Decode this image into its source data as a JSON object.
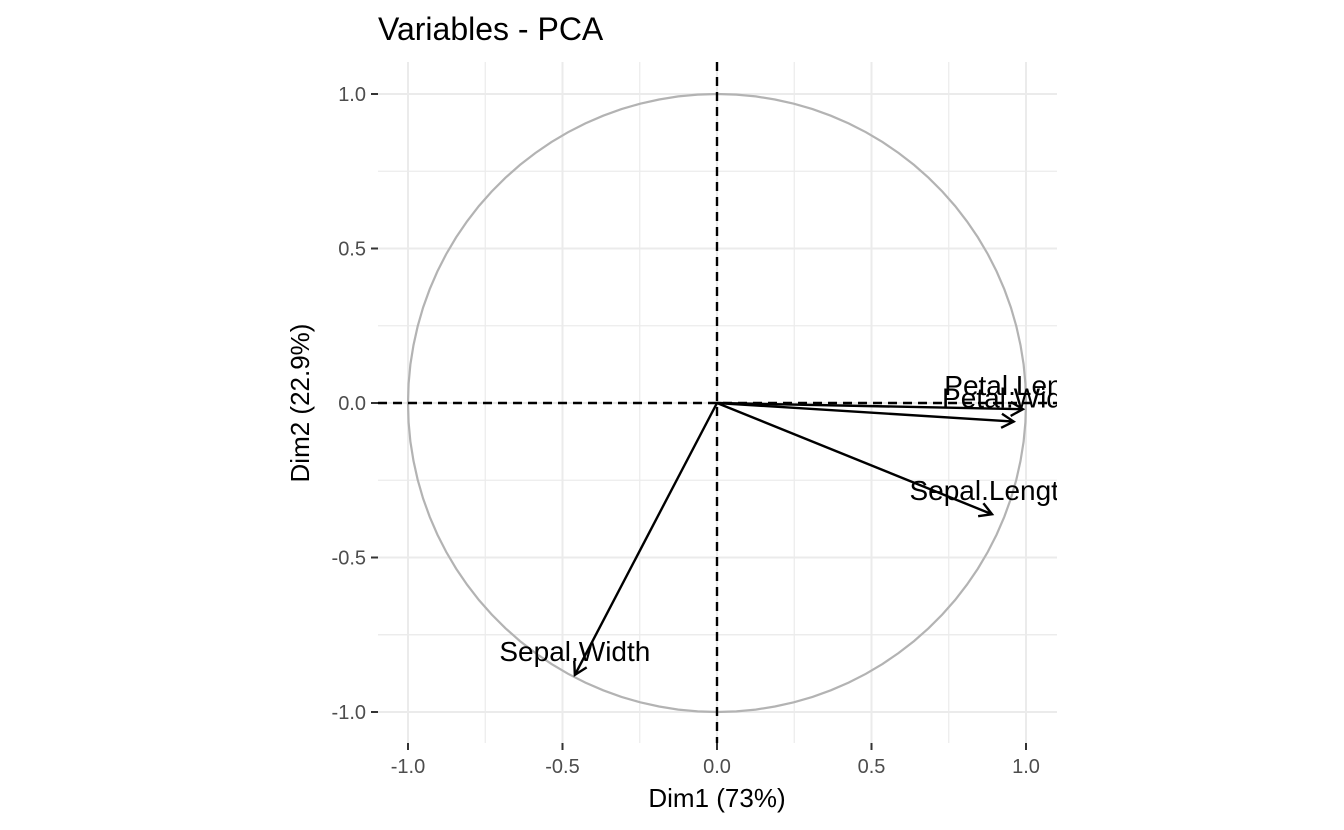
{
  "chart_data": {
    "type": "scatter",
    "title": "Variables - PCA",
    "xlabel": "Dim1 (73%)",
    "ylabel": "Dim2 (22.9%)",
    "xlim": [
      -1.0,
      1.0
    ],
    "ylim": [
      -1.0,
      1.0
    ],
    "x_ticks": [
      "-1.0",
      "-0.5",
      "0.0",
      "0.5",
      "1.0"
    ],
    "y_ticks": [
      "1.0",
      "0.5",
      "0.0",
      "-0.5",
      "-1.0"
    ],
    "x_tick_values": [
      -1.0,
      -0.5,
      0.0,
      0.5,
      1.0
    ],
    "y_tick_values": [
      1.0,
      0.5,
      0.0,
      -0.5,
      -1.0
    ],
    "grid": true,
    "correlation_circle": true,
    "reference_lines": "dashed at x=0 and y=0",
    "colors": {
      "arrows": "#000000",
      "circle": "#b3b3b3",
      "grid": "#ebebeb",
      "ticks": "#4d4d4d"
    },
    "variables": [
      {
        "label": "Sepal.Length",
        "x": 0.89,
        "y": -0.36
      },
      {
        "label": "Sepal.Width",
        "x": -0.46,
        "y": -0.88
      },
      {
        "label": "Petal.Length",
        "x": 0.99,
        "y": -0.02
      },
      {
        "label": "Petal.Width",
        "x": 0.96,
        "y": -0.06
      }
    ]
  }
}
